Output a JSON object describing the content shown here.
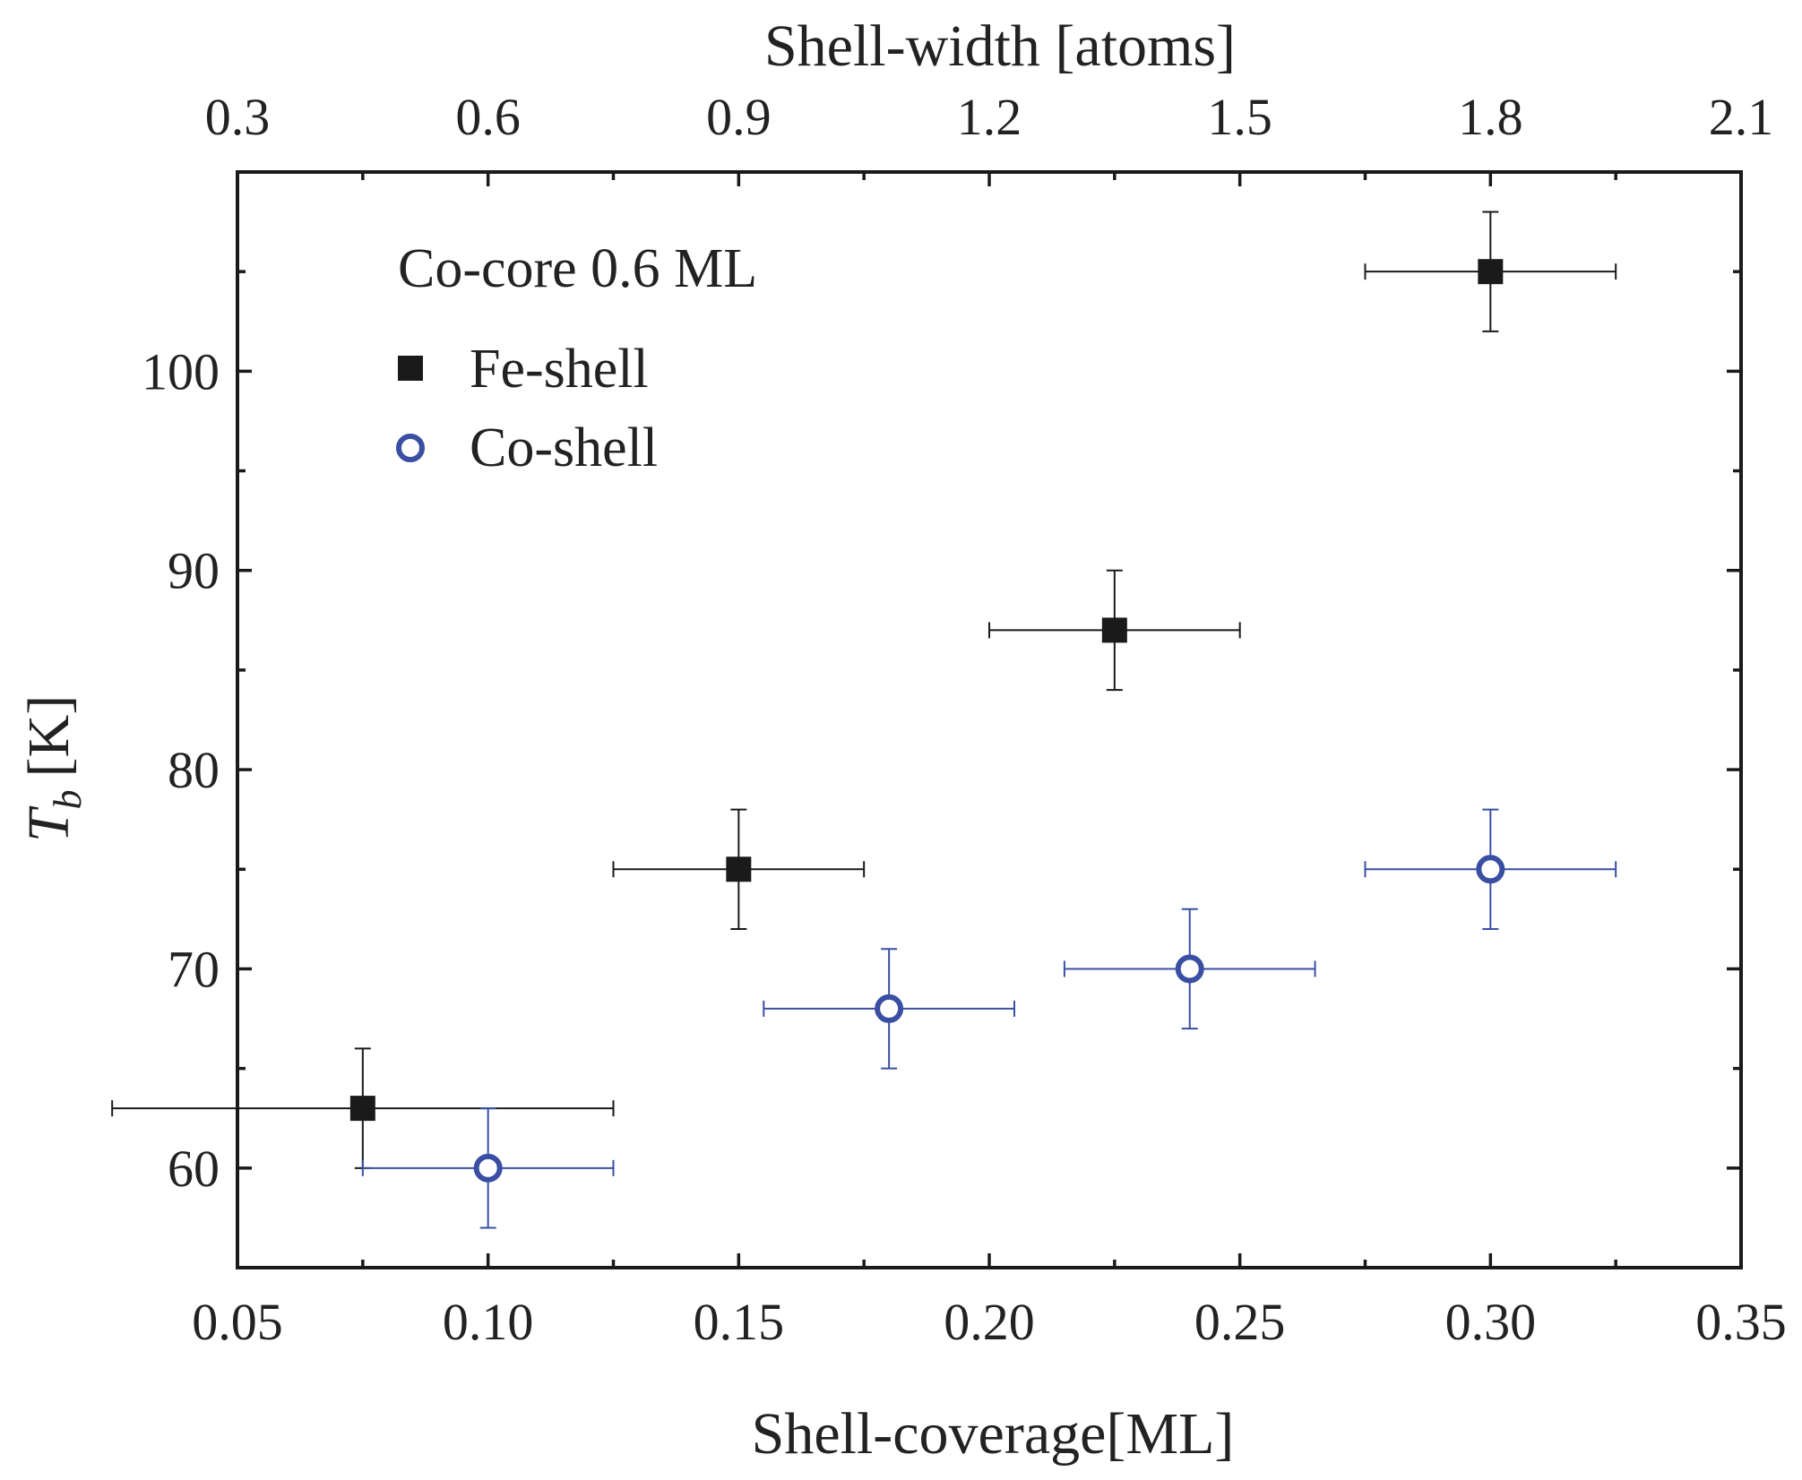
{
  "chart_data": {
    "type": "scatter",
    "title": "",
    "xlabel": "Shell-coverage[ML]",
    "x2label": "Shell-width [atoms]",
    "ylabel_main": "T",
    "ylabel_sub": "b",
    "ylabel_unit": "[K]",
    "xlim": [
      0.05,
      0.35
    ],
    "x2lim": [
      0.3,
      2.1
    ],
    "ylim": [
      55,
      110
    ],
    "x_ticks": [
      "0.05",
      "0.10",
      "0.15",
      "0.20",
      "0.25",
      "0.30",
      "0.35"
    ],
    "x2_ticks": [
      "0.3",
      "0.6",
      "0.9",
      "1.2",
      "1.5",
      "1.8",
      "2.1"
    ],
    "y_ticks": [
      "60",
      "70",
      "80",
      "90",
      "100"
    ],
    "legend_title": "Co-core 0.6 ML",
    "legend_position": "top-left",
    "grid": false,
    "series": [
      {
        "name": "Fe-shell",
        "marker": "filled-square",
        "color": "#1a1a1a",
        "points": [
          {
            "x": 0.075,
            "y": 63,
            "xerr": 0.05,
            "yerr": 3
          },
          {
            "x": 0.15,
            "y": 75,
            "xerr": 0.025,
            "yerr": 3
          },
          {
            "x": 0.225,
            "y": 87,
            "xerr": 0.025,
            "yerr": 3
          },
          {
            "x": 0.3,
            "y": 105,
            "xerr": 0.025,
            "yerr": 3
          }
        ]
      },
      {
        "name": "Co-shell",
        "marker": "open-circle",
        "color": "#3a4fa3",
        "points": [
          {
            "x": 0.1,
            "y": 60,
            "xerr": 0.025,
            "yerr": 3
          },
          {
            "x": 0.18,
            "y": 68,
            "xerr": 0.025,
            "yerr": 3
          },
          {
            "x": 0.24,
            "y": 70,
            "xerr": 0.025,
            "yerr": 3
          },
          {
            "x": 0.3,
            "y": 75,
            "xerr": 0.025,
            "yerr": 3
          }
        ]
      }
    ]
  }
}
